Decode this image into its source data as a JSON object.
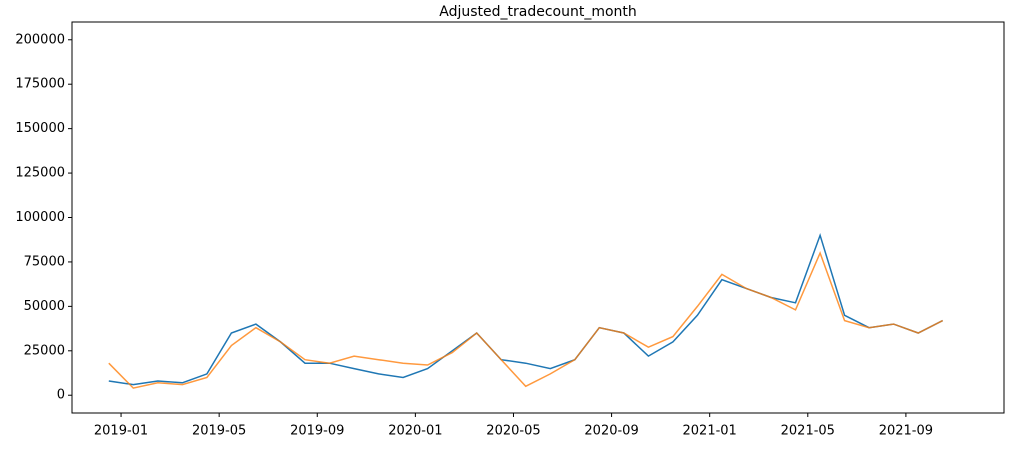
{
  "chart_data": {
    "type": "line",
    "title": "Adjusted_tradecount_month",
    "x": [
      "2018-12",
      "2019-01",
      "2019-02",
      "2019-03",
      "2019-04",
      "2019-05",
      "2019-06",
      "2019-07",
      "2019-08",
      "2019-09",
      "2019-10",
      "2019-11",
      "2019-12",
      "2020-01",
      "2020-02",
      "2020-03",
      "2020-04",
      "2020-05",
      "2020-06",
      "2020-07",
      "2020-08",
      "2020-09",
      "2020-10",
      "2020-11",
      "2020-12",
      "2021-01",
      "2021-02",
      "2021-03",
      "2021-04",
      "2021-05",
      "2021-06",
      "2021-07",
      "2021-08",
      "2021-09",
      "2021-10"
    ],
    "series": [
      {
        "color": "#1f77b4",
        "values": [
          8000,
          6000,
          8000,
          7000,
          12000,
          35000,
          40000,
          30000,
          18000,
          18000,
          15000,
          12000,
          10000,
          15000,
          25000,
          35000,
          20000,
          18000,
          15000,
          20000,
          38000,
          35000,
          22000,
          30000,
          45000,
          65000,
          60000,
          55000,
          52000,
          90000,
          45000,
          38000,
          40000,
          35000,
          42000
        ]
      },
      {
        "color": "#ff7f0e",
        "values": [
          18000,
          4000,
          7000,
          6000,
          10000,
          28000,
          38000,
          30000,
          20000,
          18000,
          22000,
          20000,
          18000,
          17000,
          24000,
          35000,
          20000,
          5000,
          12000,
          20000,
          38000,
          35000,
          27000,
          33000,
          50000,
          68000,
          60000,
          55000,
          48000,
          80000,
          42000,
          38000,
          40000,
          35000,
          42000
        ]
      }
    ],
    "xlim": [
      "2018-11",
      "2022-01"
    ],
    "xticks": [
      "2019-01",
      "2019-05",
      "2019-09",
      "2020-01",
      "2020-05",
      "2020-09",
      "2021-01",
      "2021-05",
      "2021-09"
    ],
    "ylim": [
      -10000,
      210000
    ],
    "yticks": [
      0,
      25000,
      50000,
      75000,
      100000,
      125000,
      150000,
      175000,
      200000
    ],
    "grid": false
  }
}
